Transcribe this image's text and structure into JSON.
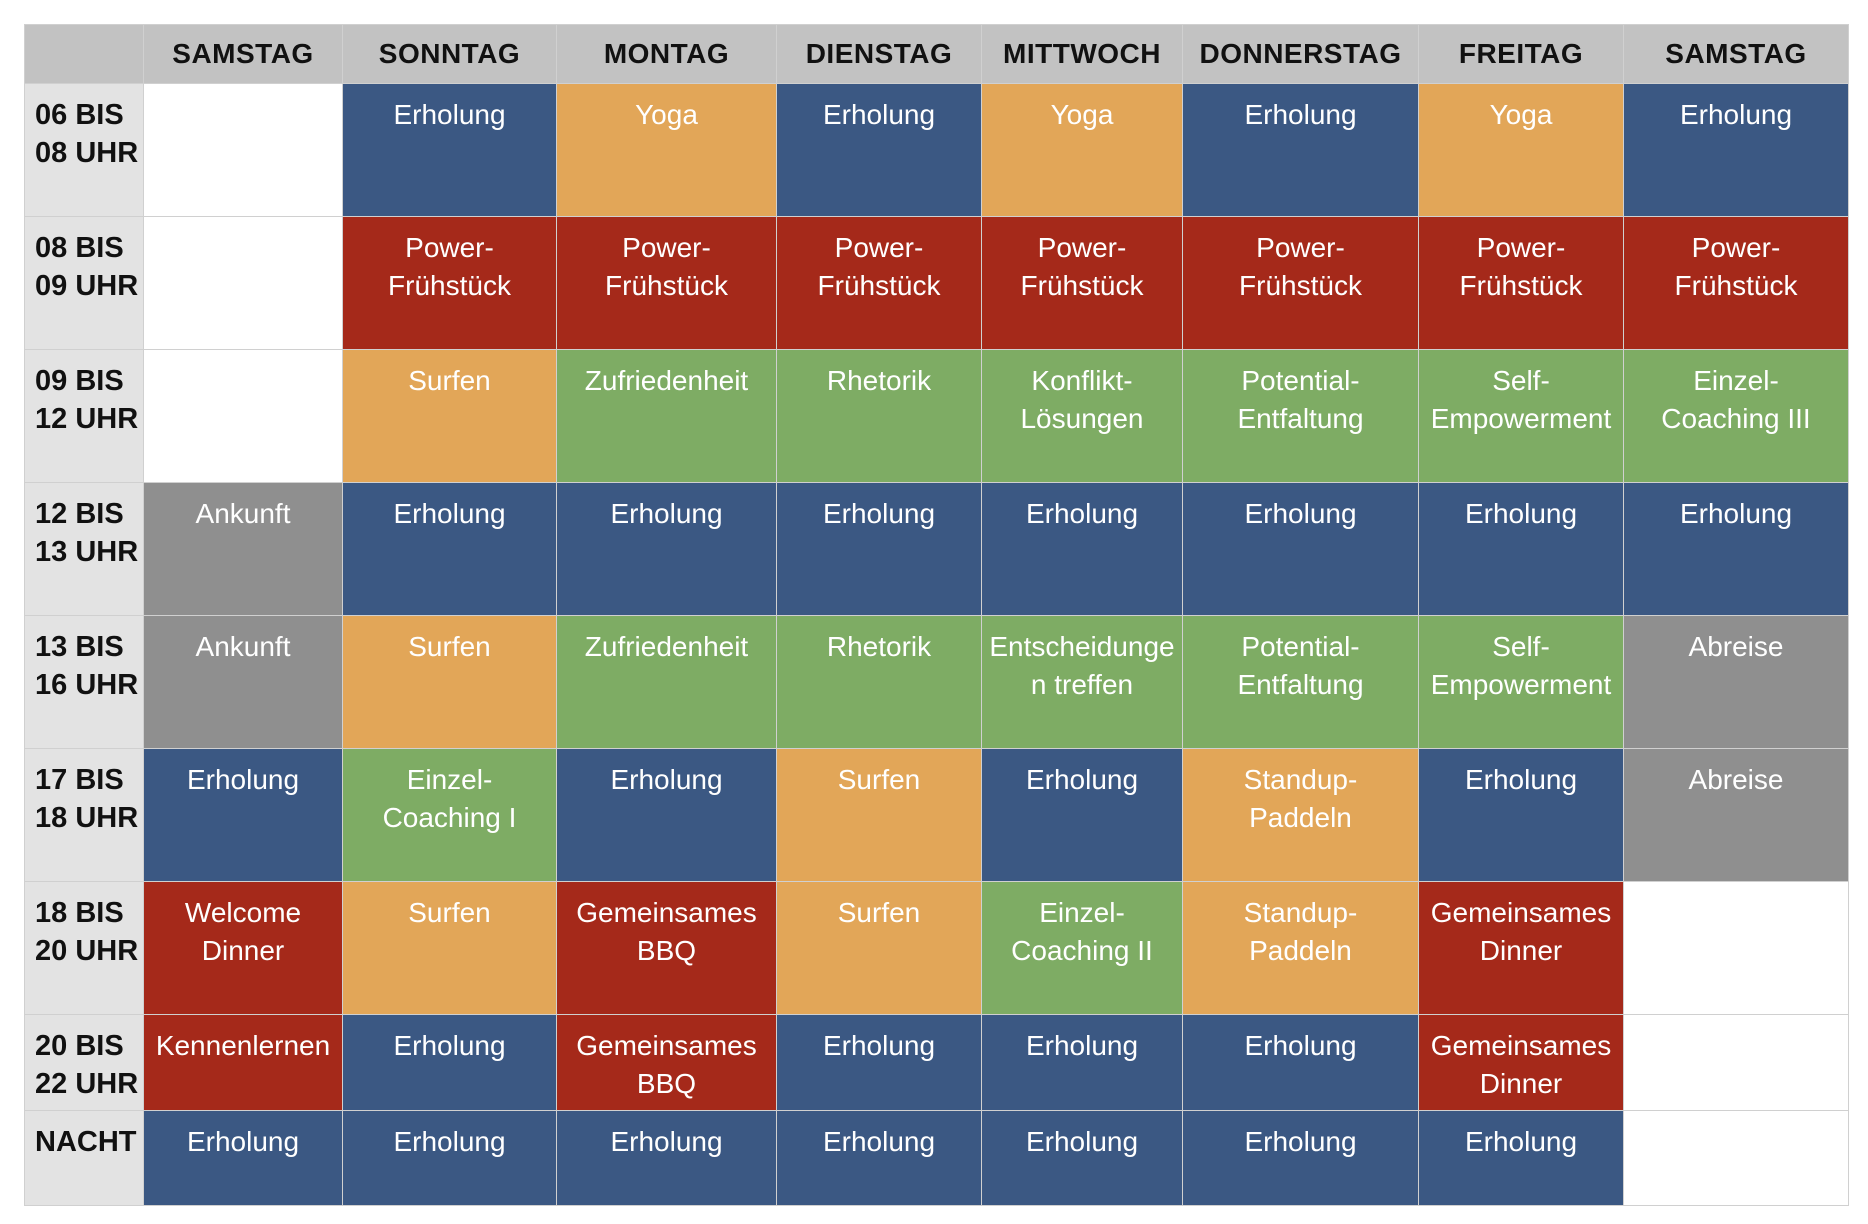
{
  "colors": {
    "blue": "#3b5883",
    "orange": "#e2a658",
    "red": "#a5291a",
    "green": "#7eac64",
    "gray": "#8f8f8f",
    "header": "#c2c2c2",
    "time_column": "#e3e3e3"
  },
  "days": [
    "SAMSTAG",
    "SONNTAG",
    "MONTAG",
    "DIENSTAG",
    "MITTWOCH",
    "DONNERSTAG",
    "FREITAG",
    "SAMSTAG"
  ],
  "rows": [
    {
      "time": "06 BIS\n08 UHR",
      "cells": [
        {
          "text": "",
          "color": "empty"
        },
        {
          "text": "Erholung",
          "color": "blue"
        },
        {
          "text": "Yoga",
          "color": "orange"
        },
        {
          "text": "Erholung",
          "color": "blue"
        },
        {
          "text": "Yoga",
          "color": "orange"
        },
        {
          "text": "Erholung",
          "color": "blue"
        },
        {
          "text": "Yoga",
          "color": "orange"
        },
        {
          "text": "Erholung",
          "color": "blue"
        }
      ]
    },
    {
      "time": "08 BIS\n09 UHR",
      "cells": [
        {
          "text": "",
          "color": "empty"
        },
        {
          "text": "Power-\nFrühstück",
          "color": "red"
        },
        {
          "text": "Power-\nFrühstück",
          "color": "red"
        },
        {
          "text": "Power-\nFrühstück",
          "color": "red"
        },
        {
          "text": "Power-\nFrühstück",
          "color": "red"
        },
        {
          "text": "Power-\nFrühstück",
          "color": "red"
        },
        {
          "text": "Power-\nFrühstück",
          "color": "red"
        },
        {
          "text": "Power-\nFrühstück",
          "color": "red"
        }
      ]
    },
    {
      "time": "09 BIS\n12 UHR",
      "cells": [
        {
          "text": "",
          "color": "empty"
        },
        {
          "text": "Surfen",
          "color": "orange"
        },
        {
          "text": "Zufriedenheit",
          "color": "green"
        },
        {
          "text": "Rhetorik",
          "color": "green"
        },
        {
          "text": "Konflikt-\nLösungen",
          "color": "green"
        },
        {
          "text": "Potential-\nEntfaltung",
          "color": "green"
        },
        {
          "text": "Self-\nEmpowerment",
          "color": "green"
        },
        {
          "text": "Einzel-\nCoaching III",
          "color": "green"
        }
      ]
    },
    {
      "time": "12 BIS\n13 UHR",
      "cells": [
        {
          "text": "Ankunft",
          "color": "gray"
        },
        {
          "text": "Erholung",
          "color": "blue"
        },
        {
          "text": "Erholung",
          "color": "blue"
        },
        {
          "text": "Erholung",
          "color": "blue"
        },
        {
          "text": "Erholung",
          "color": "blue"
        },
        {
          "text": "Erholung",
          "color": "blue"
        },
        {
          "text": "Erholung",
          "color": "blue"
        },
        {
          "text": "Erholung",
          "color": "blue"
        }
      ]
    },
    {
      "time": "13 BIS\n16 UHR",
      "cells": [
        {
          "text": "Ankunft",
          "color": "gray"
        },
        {
          "text": "Surfen",
          "color": "orange"
        },
        {
          "text": "Zufriedenheit",
          "color": "green"
        },
        {
          "text": "Rhetorik",
          "color": "green"
        },
        {
          "text": "Entscheidunge\nn treffen",
          "color": "green"
        },
        {
          "text": "Potential-\nEntfaltung",
          "color": "green"
        },
        {
          "text": "Self-\nEmpowerment",
          "color": "green"
        },
        {
          "text": "Abreise",
          "color": "gray"
        }
      ]
    },
    {
      "time": "17 BIS\n18 UHR",
      "cells": [
        {
          "text": "Erholung",
          "color": "blue"
        },
        {
          "text": "Einzel-\nCoaching I",
          "color": "green"
        },
        {
          "text": "Erholung",
          "color": "blue"
        },
        {
          "text": "Surfen",
          "color": "orange"
        },
        {
          "text": "Erholung",
          "color": "blue"
        },
        {
          "text": "Standup-\nPaddeln",
          "color": "orange"
        },
        {
          "text": "Erholung",
          "color": "blue"
        },
        {
          "text": "Abreise",
          "color": "gray"
        }
      ]
    },
    {
      "time": "18 BIS\n20 UHR",
      "cells": [
        {
          "text": "Welcome\nDinner",
          "color": "red"
        },
        {
          "text": "Surfen",
          "color": "orange"
        },
        {
          "text": "Gemeinsames\nBBQ",
          "color": "red"
        },
        {
          "text": "Surfen",
          "color": "orange"
        },
        {
          "text": "Einzel-\nCoaching II",
          "color": "green"
        },
        {
          "text": "Standup-\nPaddeln",
          "color": "orange"
        },
        {
          "text": "Gemeinsames\nDinner",
          "color": "red"
        },
        {
          "text": "",
          "color": "empty"
        }
      ]
    },
    {
      "time": "20 BIS\n22 UHR",
      "cells": [
        {
          "text": "Kennenlernen",
          "color": "red"
        },
        {
          "text": "Erholung",
          "color": "blue"
        },
        {
          "text": "Gemeinsames\nBBQ",
          "color": "red"
        },
        {
          "text": "Erholung",
          "color": "blue"
        },
        {
          "text": "Erholung",
          "color": "blue"
        },
        {
          "text": "Erholung",
          "color": "blue"
        },
        {
          "text": "Gemeinsames\nDinner",
          "color": "red"
        },
        {
          "text": "",
          "color": "empty"
        }
      ]
    },
    {
      "time": "NACHT",
      "cells": [
        {
          "text": "Erholung",
          "color": "blue"
        },
        {
          "text": "Erholung",
          "color": "blue"
        },
        {
          "text": "Erholung",
          "color": "blue"
        },
        {
          "text": "Erholung",
          "color": "blue"
        },
        {
          "text": "Erholung",
          "color": "blue"
        },
        {
          "text": "Erholung",
          "color": "blue"
        },
        {
          "text": "Erholung",
          "color": "blue"
        },
        {
          "text": "",
          "color": "empty"
        }
      ]
    }
  ]
}
